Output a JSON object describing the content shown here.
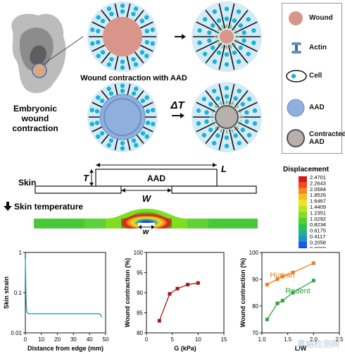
{
  "top": {
    "embryo_label": "Embryonic\nwound\ncontraction",
    "aad_row_title": "Wound contraction with AAD",
    "delta_t_label": "ΔT"
  },
  "legend": {
    "items": [
      {
        "label": "Wound",
        "icon": "wound-circle",
        "color": "#d9958a"
      },
      {
        "label": "Actin",
        "icon": "actin-glyph",
        "color": "#3b6aa8"
      },
      {
        "label": "Cell",
        "icon": "cell-glyph",
        "color": "#1ab3d6"
      },
      {
        "label": "AAD",
        "icon": "aad-circle",
        "color": "#8fb0dc"
      },
      {
        "label": "Contracted\nAAD",
        "icon": "contracted-aad-circle",
        "color": "#b8b0ab"
      }
    ]
  },
  "schematic": {
    "skin_label": "Skin",
    "aad_label": "AAD",
    "t_label": "T",
    "l_label": "L",
    "w_label": "W",
    "skin_temperature_label": "Skin temperature",
    "w_small_label": "w"
  },
  "colorbar": {
    "title": "Displacement",
    "ticks": [
      "2.4701",
      "2.2643",
      "2.0584",
      "1.8526",
      "1.6467",
      "1.4409",
      "1.2351",
      "1.0292",
      "0.8234",
      "0.6175",
      "0.4117",
      "0.2058",
      "0.0000"
    ],
    "colors": [
      "#d41a1a",
      "#f24a1a",
      "#f5891c",
      "#f2c21a",
      "#e8e81c",
      "#b8e51e",
      "#7fdd22",
      "#4fd02a",
      "#2cc24a",
      "#22b38a",
      "#1a95c8",
      "#1a5de0",
      "#1a1ad6"
    ]
  },
  "chart_data": [
    {
      "type": "line",
      "xlabel": "Distance from edge (mm)",
      "ylabel": "Skin strain",
      "x_ticks": [
        "0",
        "10",
        "20",
        "30",
        "40",
        "50"
      ],
      "y_ticks": [
        "0.01",
        "0.1",
        "1"
      ],
      "xlim": [
        0,
        50
      ],
      "ylim": [
        0.01,
        1
      ],
      "y_scale": "log",
      "series": [
        {
          "color": "#2a9aa6",
          "x": [
            0.0,
            0.15,
            0.3,
            0.5,
            0.7,
            1.0,
            1.5,
            2.0,
            3.0,
            5.0,
            10,
            20,
            30,
            40,
            46,
            47,
            47.5
          ],
          "y": [
            0.7,
            0.35,
            0.15,
            0.06,
            0.04,
            0.033,
            0.031,
            0.03,
            0.03,
            0.03,
            0.03,
            0.03,
            0.03,
            0.03,
            0.03,
            0.028,
            0.024
          ]
        }
      ]
    },
    {
      "type": "line",
      "xlabel": "G (kPa)",
      "ylabel": "Wound contraction (%)",
      "x_ticks": [
        "0",
        "5",
        "10",
        "15"
      ],
      "y_ticks": [
        "80",
        "85",
        "90",
        "95",
        "100"
      ],
      "xlim": [
        0,
        15
      ],
      "ylim": [
        80,
        100
      ],
      "series": [
        {
          "color": "#a01818",
          "x": [
            2.5,
            4.5,
            6,
            8,
            10
          ],
          "y": [
            83,
            89.7,
            91,
            92,
            92.4
          ]
        }
      ]
    },
    {
      "type": "line",
      "xlabel": "L/W",
      "ylabel": "Wound contraction (%)",
      "x_ticks": [
        "1.0",
        "1.5",
        "2.0",
        "2.5"
      ],
      "y_ticks": [
        "70",
        "80",
        "90",
        "100"
      ],
      "xlim": [
        1.0,
        2.5
      ],
      "ylim": [
        70,
        100
      ],
      "series": [
        {
          "name": "Human",
          "color": "#f07c20",
          "x": [
            1.1,
            1.3,
            1.4,
            1.6,
            2.0
          ],
          "y": [
            88,
            90,
            91,
            92.5,
            96
          ]
        },
        {
          "name": "Rodent",
          "color": "#2aa63a",
          "x": [
            1.1,
            1.3,
            1.4,
            1.6,
            2.0
          ],
          "y": [
            75,
            81,
            82,
            85,
            89.5
          ]
        }
      ]
    }
  ],
  "watermark": "嘉峪检测网"
}
